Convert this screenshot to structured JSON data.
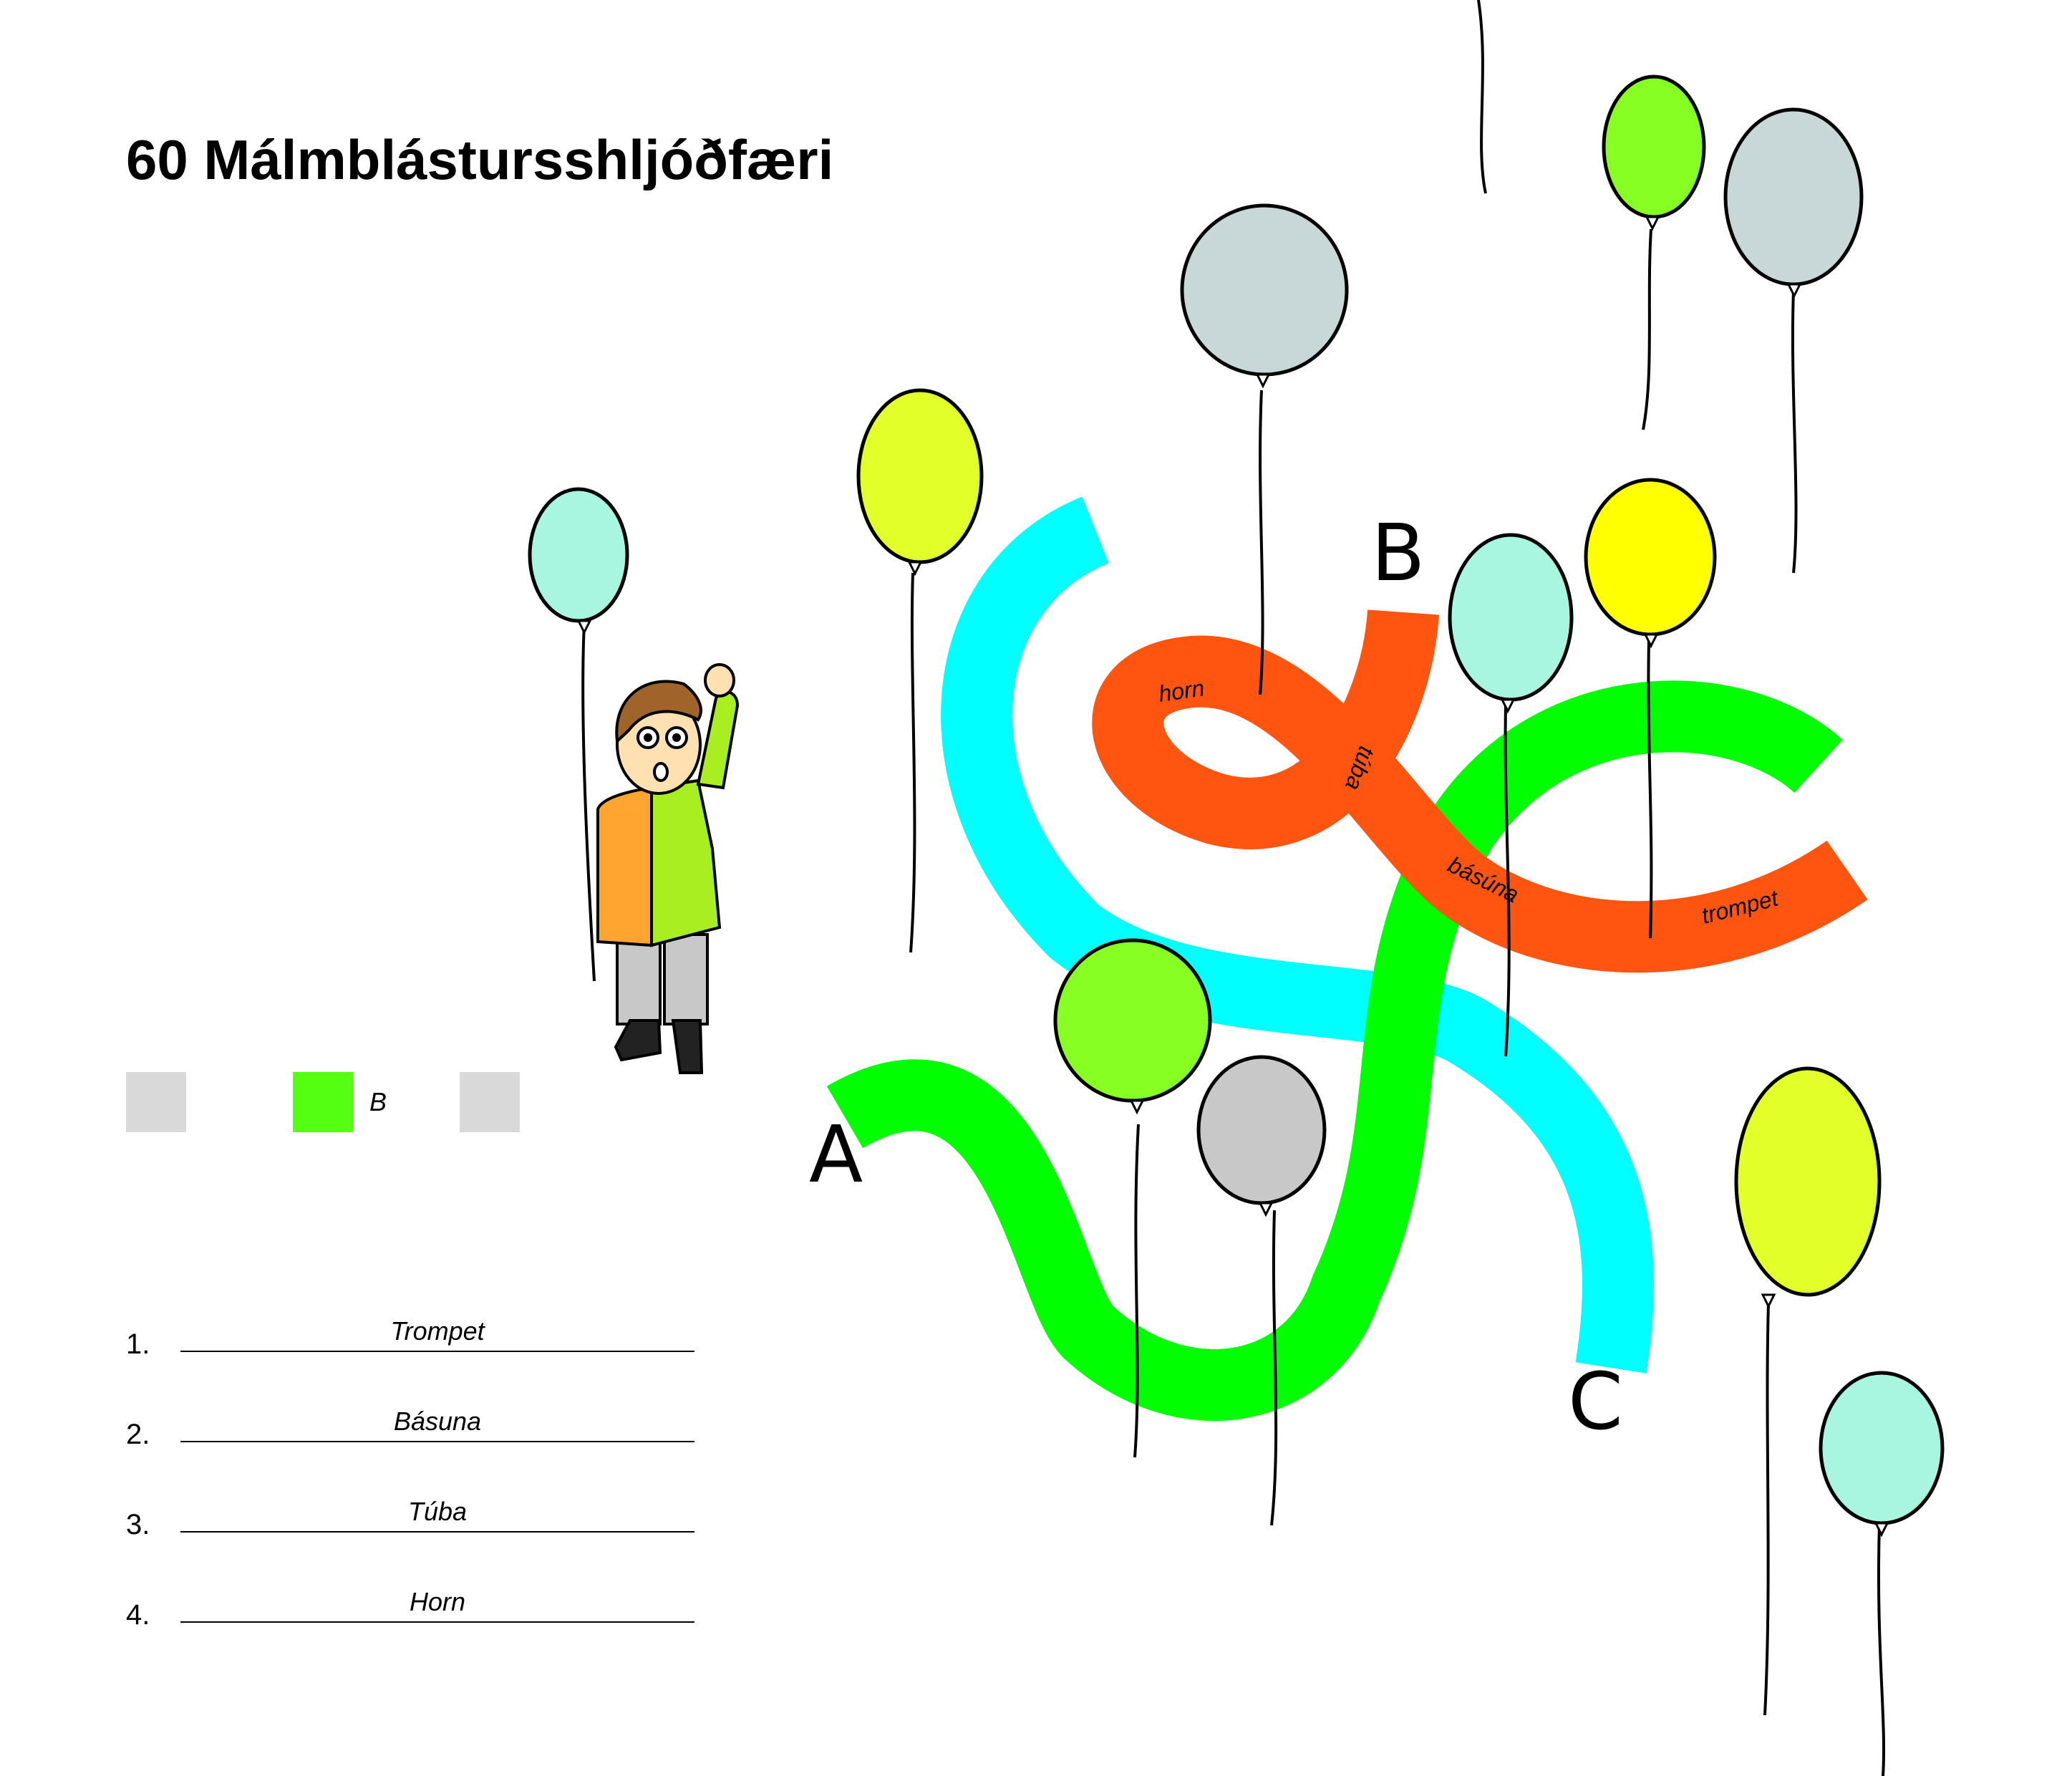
{
  "title": "60 Málmblástursshljóðfæri",
  "ribbons": {
    "labels": {
      "horn": "horn",
      "tuba": "túba",
      "basuna": "básúna",
      "trompet": "trompet"
    },
    "ends": {
      "a": "A",
      "b": "B",
      "c": "C"
    },
    "colors": {
      "a": "#00ff00",
      "b": "#ff5511",
      "c": "#00ffff"
    }
  },
  "answer_boxes": {
    "items": [
      {
        "label": "",
        "color": "#d9d9d9"
      },
      {
        "label": "B",
        "color": "#55ff11"
      },
      {
        "label": "",
        "color": "#d9d9d9"
      }
    ]
  },
  "answers": [
    {
      "number": "1.",
      "text": "Trompet"
    },
    {
      "number": "2.",
      "text": "Básuna"
    },
    {
      "number": "3.",
      "text": "Túba"
    },
    {
      "number": "4.",
      "text": "Horn"
    }
  ],
  "balloon_colors": {
    "gray": "#c8d8d8",
    "light_gray": "#c8c8c8",
    "lime": "#88ff22",
    "yellow_green": "#e2ff2a",
    "yellow": "#ffff00",
    "mint": "#a8f5e0"
  },
  "figure": {
    "icon": "child-holding-balloon",
    "shirt_left": "#ffa530",
    "shirt_right": "#a8ee20",
    "pants": "#c8c8c8",
    "hair": "#a0642a",
    "skin": "#ffe0b0"
  }
}
